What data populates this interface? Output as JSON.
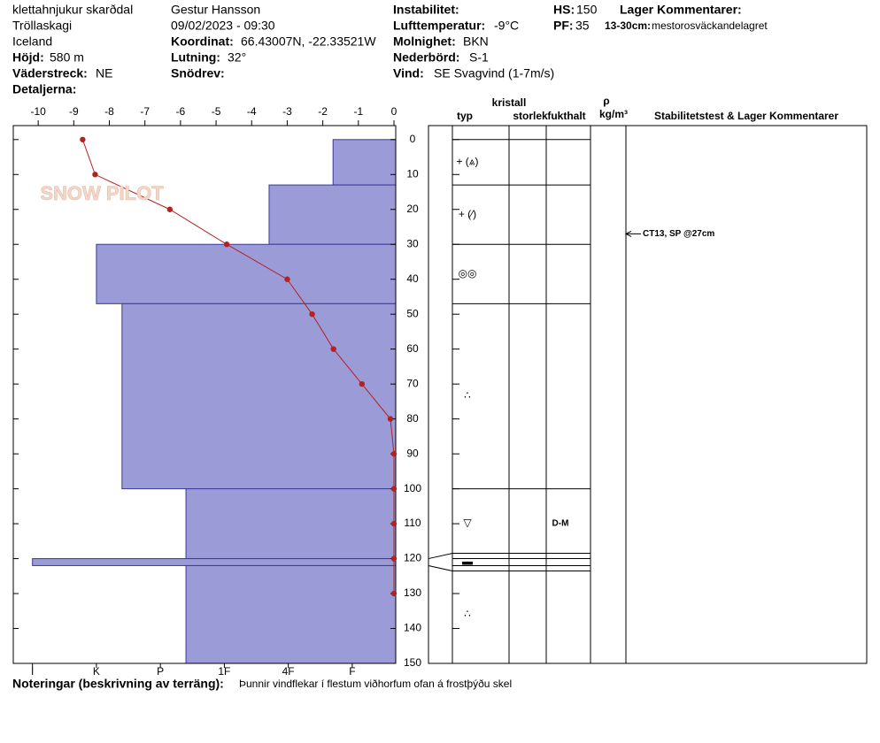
{
  "header": {
    "location": [
      "klettahnjukur skarðdal",
      "Tröllaskagi",
      "Iceland"
    ],
    "elevation": {
      "label": "Höjd:",
      "value": "580 m"
    },
    "aspect": {
      "label": "Väderstreck:",
      "value": "NE"
    },
    "details": {
      "label": "Detaljerna:"
    },
    "observer": "Gestur Hansson",
    "datetime": "09/02/2023 - 09:30",
    "coordinates": {
      "label": "Koordinat:",
      "value": "66.43007N, -22.33521W"
    },
    "slope": {
      "label": "Lutning:",
      "value": "32°"
    },
    "wind_loading": {
      "label": "Snödrev:"
    },
    "instability": {
      "label": "Instabilitet:"
    },
    "air_temperature": {
      "label": "Lufttemperatur:",
      "value": "-9°C"
    },
    "sky": {
      "label": "Molnighet:",
      "value": "BKN"
    },
    "precipitation": {
      "label": "Nederbörd:",
      "value": "S-1"
    },
    "wind": {
      "label": "Vind:",
      "value": "SE Svagvind (1-7m/s)"
    },
    "hs": {
      "label": "HS:",
      "value": "150"
    },
    "pf": {
      "label": "PF:",
      "value": "35"
    },
    "layer_comments": {
      "label": "Lager Kommentarer:",
      "range": "13-30cm:",
      "text": "mestorosväckandelagret"
    },
    "logo": "SNOW PILOT"
  },
  "footer": {
    "label": "Noteringar (beskrivning av terräng):",
    "text": "Þunnir vindflekar í flestum viðhorfum ofan á frostþýðu skel"
  },
  "chart_data": {
    "type": "snow-profile",
    "ylim": [
      -4,
      150
    ],
    "yticks": [
      0,
      10,
      20,
      30,
      40,
      50,
      60,
      70,
      80,
      90,
      100,
      110,
      120,
      130,
      140,
      150
    ],
    "temperature": {
      "color": "#b22222",
      "xlim": [
        -10.7,
        0
      ],
      "xticks": [
        -10,
        -9,
        -8,
        -7,
        -6,
        -5,
        -4,
        -3,
        -2,
        -1,
        0
      ],
      "depths": [
        0,
        10,
        20,
        30,
        40,
        50,
        60,
        70,
        80,
        90,
        100,
        110,
        120,
        130
      ],
      "values": [
        -8.75,
        -8.4,
        -6.3,
        -4.7,
        -3,
        -2.3,
        -1.7,
        -0.9,
        -0.1,
        0,
        0,
        0,
        0,
        0
      ]
    },
    "hardness": {
      "color": "#9b9bd8",
      "xlim": [
        6.3,
        0.32
      ],
      "xticks": [
        {
          "value": 6,
          "label": "I"
        },
        {
          "value": 5,
          "label": "K"
        },
        {
          "value": 4,
          "label": "P"
        },
        {
          "value": 3,
          "label": "1F"
        },
        {
          "value": 2,
          "label": "4F"
        },
        {
          "value": 1,
          "label": "F"
        }
      ],
      "tops": [
        0,
        13,
        30,
        47,
        100,
        120,
        122
      ],
      "bottoms": [
        13,
        30,
        47,
        100,
        120,
        122,
        150
      ],
      "values": [
        1.3,
        2.3,
        5,
        4.6,
        3.6,
        6,
        3.6
      ]
    },
    "table_headers": {
      "crystal": "kristall",
      "type": "typ",
      "size": "storlek",
      "moisture": "fukthalt",
      "rho": "ρ",
      "density": "kg/m³",
      "comments": "Stabilitetstest & Lager Kommentarer"
    },
    "grain_types": [
      "+ (⩓)",
      "+ (⁄)",
      "◎◎",
      "∴",
      "▽",
      "▬",
      "∴"
    ],
    "moisture": [
      null,
      null,
      null,
      null,
      "D-M",
      null,
      null
    ],
    "stability_tests": [
      {
        "depth": 27,
        "label": "CT13, SP @27cm"
      }
    ]
  }
}
